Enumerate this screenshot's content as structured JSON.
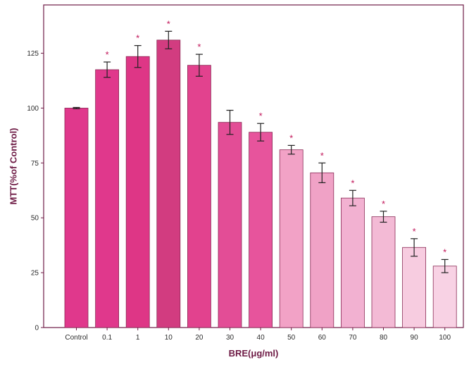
{
  "chart_data": {
    "type": "bar",
    "xlabel": "BRE(μg/ml)",
    "ylabel": "MTT(%of Control)",
    "ylim": [
      0,
      147
    ],
    "yticks": [
      0,
      25,
      50,
      75,
      100,
      125
    ],
    "grid": false,
    "categories": [
      "Control",
      "0.1",
      "1",
      "10",
      "20",
      "30",
      "40",
      "50",
      "60",
      "70",
      "80",
      "90",
      "100"
    ],
    "values": [
      100,
      117.5,
      123.5,
      131,
      119.5,
      93.5,
      89,
      81,
      70.5,
      59,
      50.5,
      36.5,
      28
    ],
    "errors": [
      0.3,
      3.5,
      5,
      4,
      5,
      5.5,
      4,
      2,
      4.5,
      3.5,
      2.5,
      4,
      3
    ],
    "significance": [
      "",
      "*",
      "*",
      "*",
      "*",
      "",
      "*",
      "*",
      "*",
      "*",
      "*",
      "*",
      "*"
    ],
    "colors": [
      "#e0388c",
      "#e0388c",
      "#de3686",
      "#d23c80",
      "#e2428e",
      "#e34d96",
      "#e7549c",
      "#f2a2c6",
      "#f0a2c6",
      "#f2b1d1",
      "#f3bad5",
      "#f7cce0",
      "#f8d2e4"
    ]
  }
}
